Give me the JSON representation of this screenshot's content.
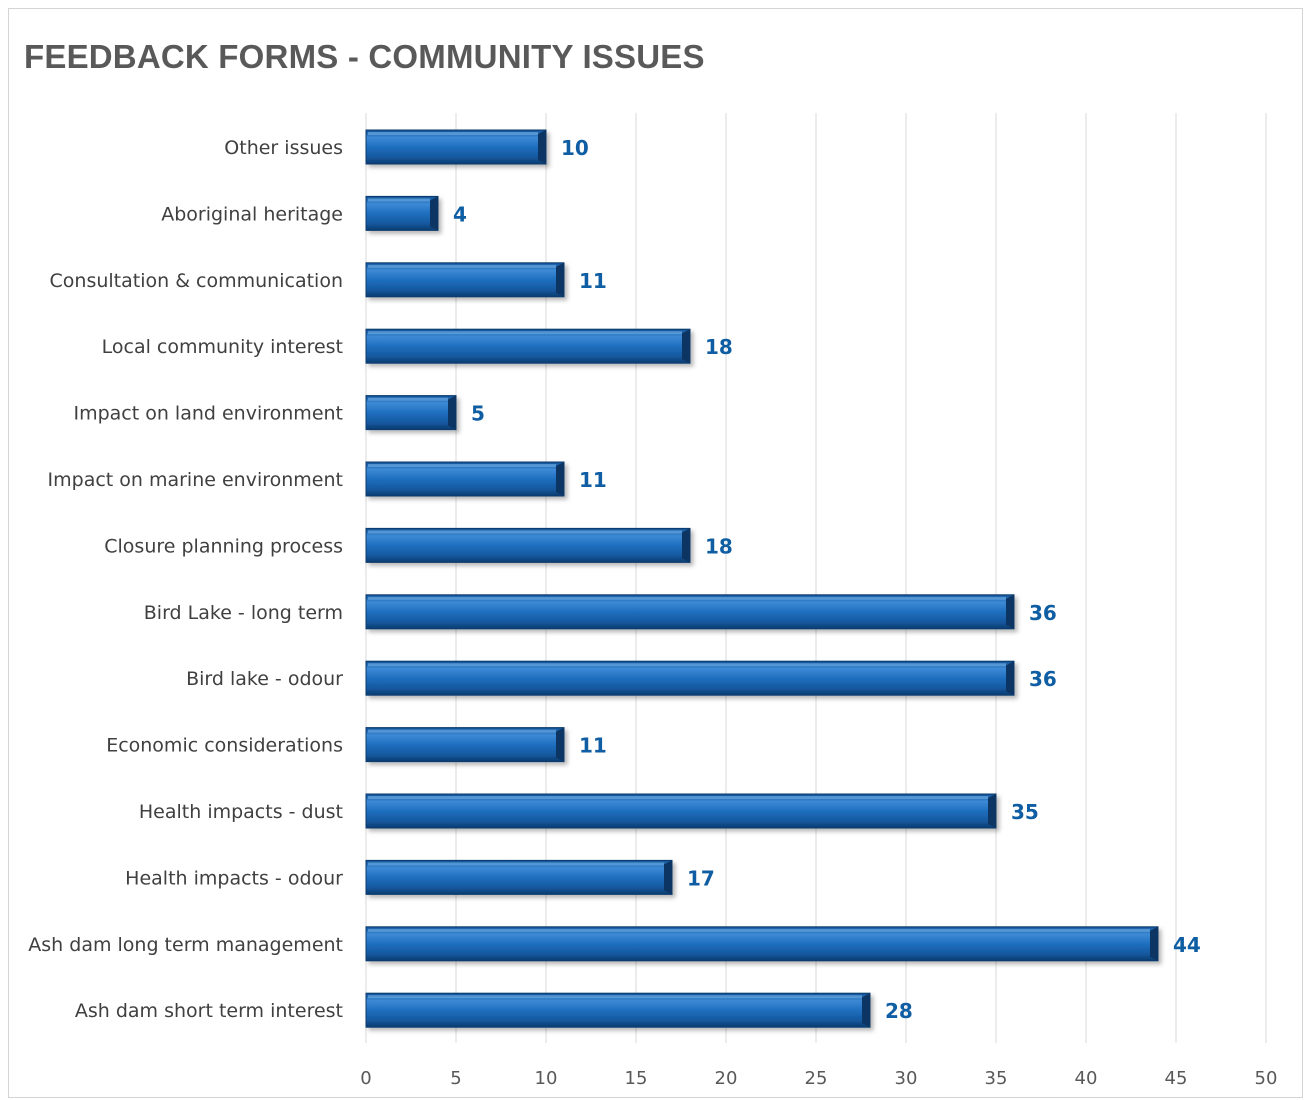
{
  "chart_data": {
    "type": "bar",
    "orientation": "horizontal",
    "title": "FEEDBACK FORMS - COMMUNITY ISSUES",
    "categories": [
      "Other issues",
      "Aboriginal heritage",
      "Consultation & communication",
      "Local community interest",
      "Impact on land environment",
      "Impact on marine environment",
      "Closure planning process",
      "Bird Lake - long term",
      "Bird lake - odour",
      "Economic considerations",
      "Health impacts - dust",
      "Health impacts - odour",
      "Ash dam long term management",
      "Ash dam short term interest"
    ],
    "values": [
      10,
      4,
      11,
      18,
      5,
      11,
      18,
      36,
      36,
      11,
      35,
      17,
      44,
      28
    ],
    "xlim": [
      0,
      50
    ],
    "xticks": [
      "0",
      "5",
      "10",
      "15",
      "20",
      "25",
      "30",
      "35",
      "40",
      "45",
      "50"
    ],
    "xlabel": "",
    "ylabel": "",
    "grid": "vertical",
    "data_labels": true,
    "colors": {
      "bar": "#1f6fbf",
      "bar_light": "#4f9be0",
      "bar_dark": "#0d3e73",
      "label": "#0f5ea3",
      "grid": "#d9d9d9"
    }
  }
}
